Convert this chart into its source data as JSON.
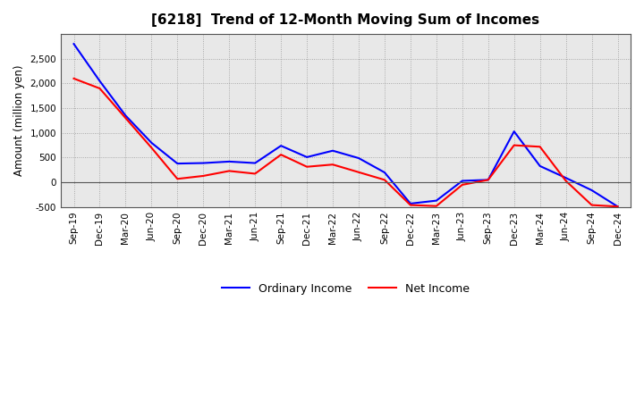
{
  "title": "[6218]  Trend of 12-Month Moving Sum of Incomes",
  "ylabel": "Amount (million yen)",
  "ylim": [
    -500,
    3000
  ],
  "yticks": [
    -500,
    0,
    500,
    1000,
    1500,
    2000,
    2500
  ],
  "plot_bg_color": "#e8e8e8",
  "fig_bg_color": "#ffffff",
  "grid_color": "#999999",
  "x_labels": [
    "Sep-19",
    "Dec-19",
    "Mar-20",
    "Jun-20",
    "Sep-20",
    "Dec-20",
    "Mar-21",
    "Jun-21",
    "Sep-21",
    "Dec-21",
    "Mar-22",
    "Jun-22",
    "Sep-22",
    "Dec-22",
    "Mar-23",
    "Jun-23",
    "Sep-23",
    "Dec-23",
    "Mar-24",
    "Jun-24",
    "Sep-24",
    "Dec-24"
  ],
  "ordinary_income": [
    2800,
    2050,
    1350,
    800,
    380,
    390,
    420,
    390,
    740,
    510,
    640,
    490,
    200,
    -430,
    -370,
    30,
    50,
    1030,
    330,
    90,
    -160,
    -490
  ],
  "net_income": [
    2100,
    1900,
    1300,
    700,
    70,
    130,
    230,
    175,
    560,
    315,
    360,
    205,
    50,
    -460,
    -480,
    -50,
    50,
    750,
    720,
    30,
    -460,
    -490
  ],
  "ordinary_color": "#0000ff",
  "net_color": "#ff0000",
  "line_width": 1.5,
  "legend_ordinary": "Ordinary Income",
  "legend_net": "Net Income",
  "title_fontsize": 11,
  "tick_fontsize": 7.5,
  "ylabel_fontsize": 8.5
}
